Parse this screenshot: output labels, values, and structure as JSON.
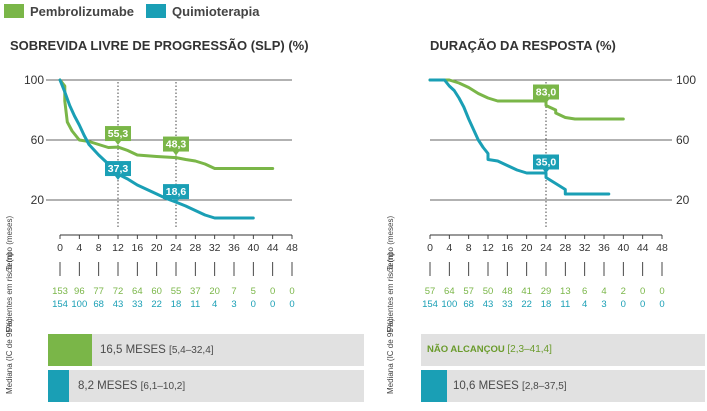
{
  "legend": [
    {
      "label": "Pembrolizumabe",
      "color": "#7ab648"
    },
    {
      "label": "Quimioterapia",
      "color": "#1a9fb5"
    }
  ],
  "colors": {
    "green": "#7ab648",
    "teal": "#1a9fb5",
    "grid": "#333333",
    "median_bg": "#e1e1e1"
  },
  "row_labels": {
    "time": "Tempo (meses)",
    "at_risk": "Pacientes em risco (n)",
    "median": "Mediana (IC de 95%)"
  },
  "chart_data": [
    {
      "type": "line",
      "title": "SOBREVIDA LIVRE DE PROGRESSÃO (SLP) (%)",
      "xlabel": "Tempo (meses)",
      "ylabel": "%",
      "xlim": [
        0,
        48
      ],
      "ylim": [
        0,
        100
      ],
      "x_ticks": [
        0,
        4,
        8,
        12,
        16,
        20,
        24,
        28,
        32,
        36,
        40,
        44,
        48
      ],
      "y_ticks": [
        100,
        60,
        20
      ],
      "y_axis_side": "left",
      "series": [
        {
          "name": "Pembrolizumabe",
          "color": "#7ab648",
          "points": [
            [
              0,
              100
            ],
            [
              1,
              96
            ],
            [
              1,
              86
            ],
            [
              1.5,
              72
            ],
            [
              2.5,
              66
            ],
            [
              3.5,
              62
            ],
            [
              4,
              60
            ],
            [
              6,
              59
            ],
            [
              8,
              57
            ],
            [
              10,
              55
            ],
            [
              12,
              55.3
            ],
            [
              14,
              53
            ],
            [
              16,
              50
            ],
            [
              20,
              49
            ],
            [
              24,
              48.3
            ],
            [
              26,
              47
            ],
            [
              28,
              46
            ],
            [
              30,
              44
            ],
            [
              32,
              41
            ],
            [
              38,
              41
            ],
            [
              44,
              41
            ]
          ]
        },
        {
          "name": "Quimioterapia",
          "color": "#1a9fb5",
          "points": [
            [
              0,
              100
            ],
            [
              1,
              92
            ],
            [
              2,
              83
            ],
            [
              3,
              76
            ],
            [
              4,
              70
            ],
            [
              5,
              63
            ],
            [
              6,
              57
            ],
            [
              8,
              50
            ],
            [
              10,
              44
            ],
            [
              12,
              37.3
            ],
            [
              14,
              34
            ],
            [
              16,
              30
            ],
            [
              18,
              27
            ],
            [
              20,
              24
            ],
            [
              22,
              21
            ],
            [
              24,
              18.6
            ],
            [
              26,
              16
            ],
            [
              28,
              13
            ],
            [
              30,
              10
            ],
            [
              32,
              8
            ],
            [
              36,
              8
            ],
            [
              40,
              8
            ]
          ]
        }
      ],
      "reference_lines": [
        12,
        24
      ],
      "annotations": [
        {
          "label": "55,3",
          "x": 12,
          "y": 55.3,
          "series": "Pembrolizumabe",
          "color": "#7ab648"
        },
        {
          "label": "48,3",
          "x": 24,
          "y": 48.3,
          "series": "Pembrolizumabe",
          "color": "#7ab648"
        },
        {
          "label": "37,3",
          "x": 12,
          "y": 37.3,
          "series": "Quimioterapia",
          "color": "#1a9fb5"
        },
        {
          "label": "18,6",
          "x": 24,
          "y": 18.6,
          "series": "Quimioterapia",
          "color": "#1a9fb5"
        }
      ],
      "at_risk": {
        "Pembrolizumabe": [
          "153",
          "96",
          "77",
          "72",
          "64",
          "60",
          "55",
          "37",
          "20",
          "7",
          "5",
          "0",
          "0"
        ],
        "Quimioterapia": [
          "154",
          "100",
          "68",
          "43",
          "33",
          "22",
          "18",
          "11",
          "4",
          "3",
          "0",
          "0",
          "0"
        ]
      },
      "median": {
        "Pembrolizumabe": {
          "value": "16,5 MESES",
          "ci": "[5,4–32,4]",
          "months": 16.5
        },
        "Quimioterapia": {
          "value": "8,2 MESES",
          "ci": "[6,1–10,2]",
          "months": 8.2
        }
      }
    },
    {
      "type": "line",
      "title": "DURAÇÃO DA RESPOSTA (%)",
      "xlabel": "Tempo (meses)",
      "ylabel": "%",
      "xlim": [
        0,
        48
      ],
      "ylim": [
        0,
        100
      ],
      "x_ticks": [
        0,
        4,
        8,
        12,
        16,
        20,
        24,
        28,
        32,
        36,
        40,
        44,
        48
      ],
      "y_ticks": [
        100,
        60,
        20
      ],
      "y_axis_side": "right",
      "series": [
        {
          "name": "Pembrolizumabe",
          "color": "#7ab648",
          "points": [
            [
              0,
              100
            ],
            [
              4,
              100
            ],
            [
              6,
              98
            ],
            [
              8,
              95
            ],
            [
              10,
              91
            ],
            [
              12,
              88
            ],
            [
              14,
              86
            ],
            [
              16,
              86
            ],
            [
              20,
              86
            ],
            [
              24,
              86
            ],
            [
              24,
              83
            ],
            [
              26,
              80
            ],
            [
              26,
              78
            ],
            [
              28,
              75
            ],
            [
              30,
              74
            ],
            [
              34,
              74
            ],
            [
              40,
              74
            ]
          ]
        },
        {
          "name": "Quimioterapia",
          "color": "#1a9fb5",
          "points": [
            [
              0,
              100
            ],
            [
              3,
              100
            ],
            [
              4,
              96
            ],
            [
              5,
              93
            ],
            [
              6,
              88
            ],
            [
              7,
              82
            ],
            [
              8,
              74
            ],
            [
              9,
              67
            ],
            [
              10,
              60
            ],
            [
              11,
              55
            ],
            [
              12,
              51
            ],
            [
              12,
              47
            ],
            [
              14,
              46
            ],
            [
              16,
              43
            ],
            [
              18,
              40
            ],
            [
              20,
              38
            ],
            [
              24,
              38
            ],
            [
              24,
              35
            ],
            [
              26,
              31
            ],
            [
              28,
              27
            ],
            [
              28,
              24
            ],
            [
              32,
              24
            ],
            [
              36,
              24
            ],
            [
              37,
              24
            ]
          ]
        }
      ],
      "reference_lines": [
        24
      ],
      "annotations": [
        {
          "label": "83,0",
          "x": 24,
          "y": 83.0,
          "series": "Pembrolizumabe",
          "color": "#7ab648"
        },
        {
          "label": "35,0",
          "x": 24,
          "y": 35.0,
          "series": "Quimioterapia",
          "color": "#1a9fb5"
        }
      ],
      "at_risk": {
        "Pembrolizumabe": [
          "57",
          "64",
          "57",
          "50",
          "48",
          "41",
          "29",
          "13",
          "6",
          "4",
          "2",
          "0",
          "0"
        ],
        "Quimioterapia": [
          "154",
          "100",
          "68",
          "43",
          "33",
          "22",
          "18",
          "11",
          "4",
          "3",
          "0",
          "0",
          "0"
        ]
      },
      "median": {
        "Pembrolizumabe": {
          "value": "NÃO ALCANÇOU",
          "ci": "[2,3–41,4]",
          "months": null
        },
        "Quimioterapia": {
          "value": "10,6 MESES",
          "ci": "[2,8–37,5]",
          "months": 10.6
        }
      }
    }
  ]
}
